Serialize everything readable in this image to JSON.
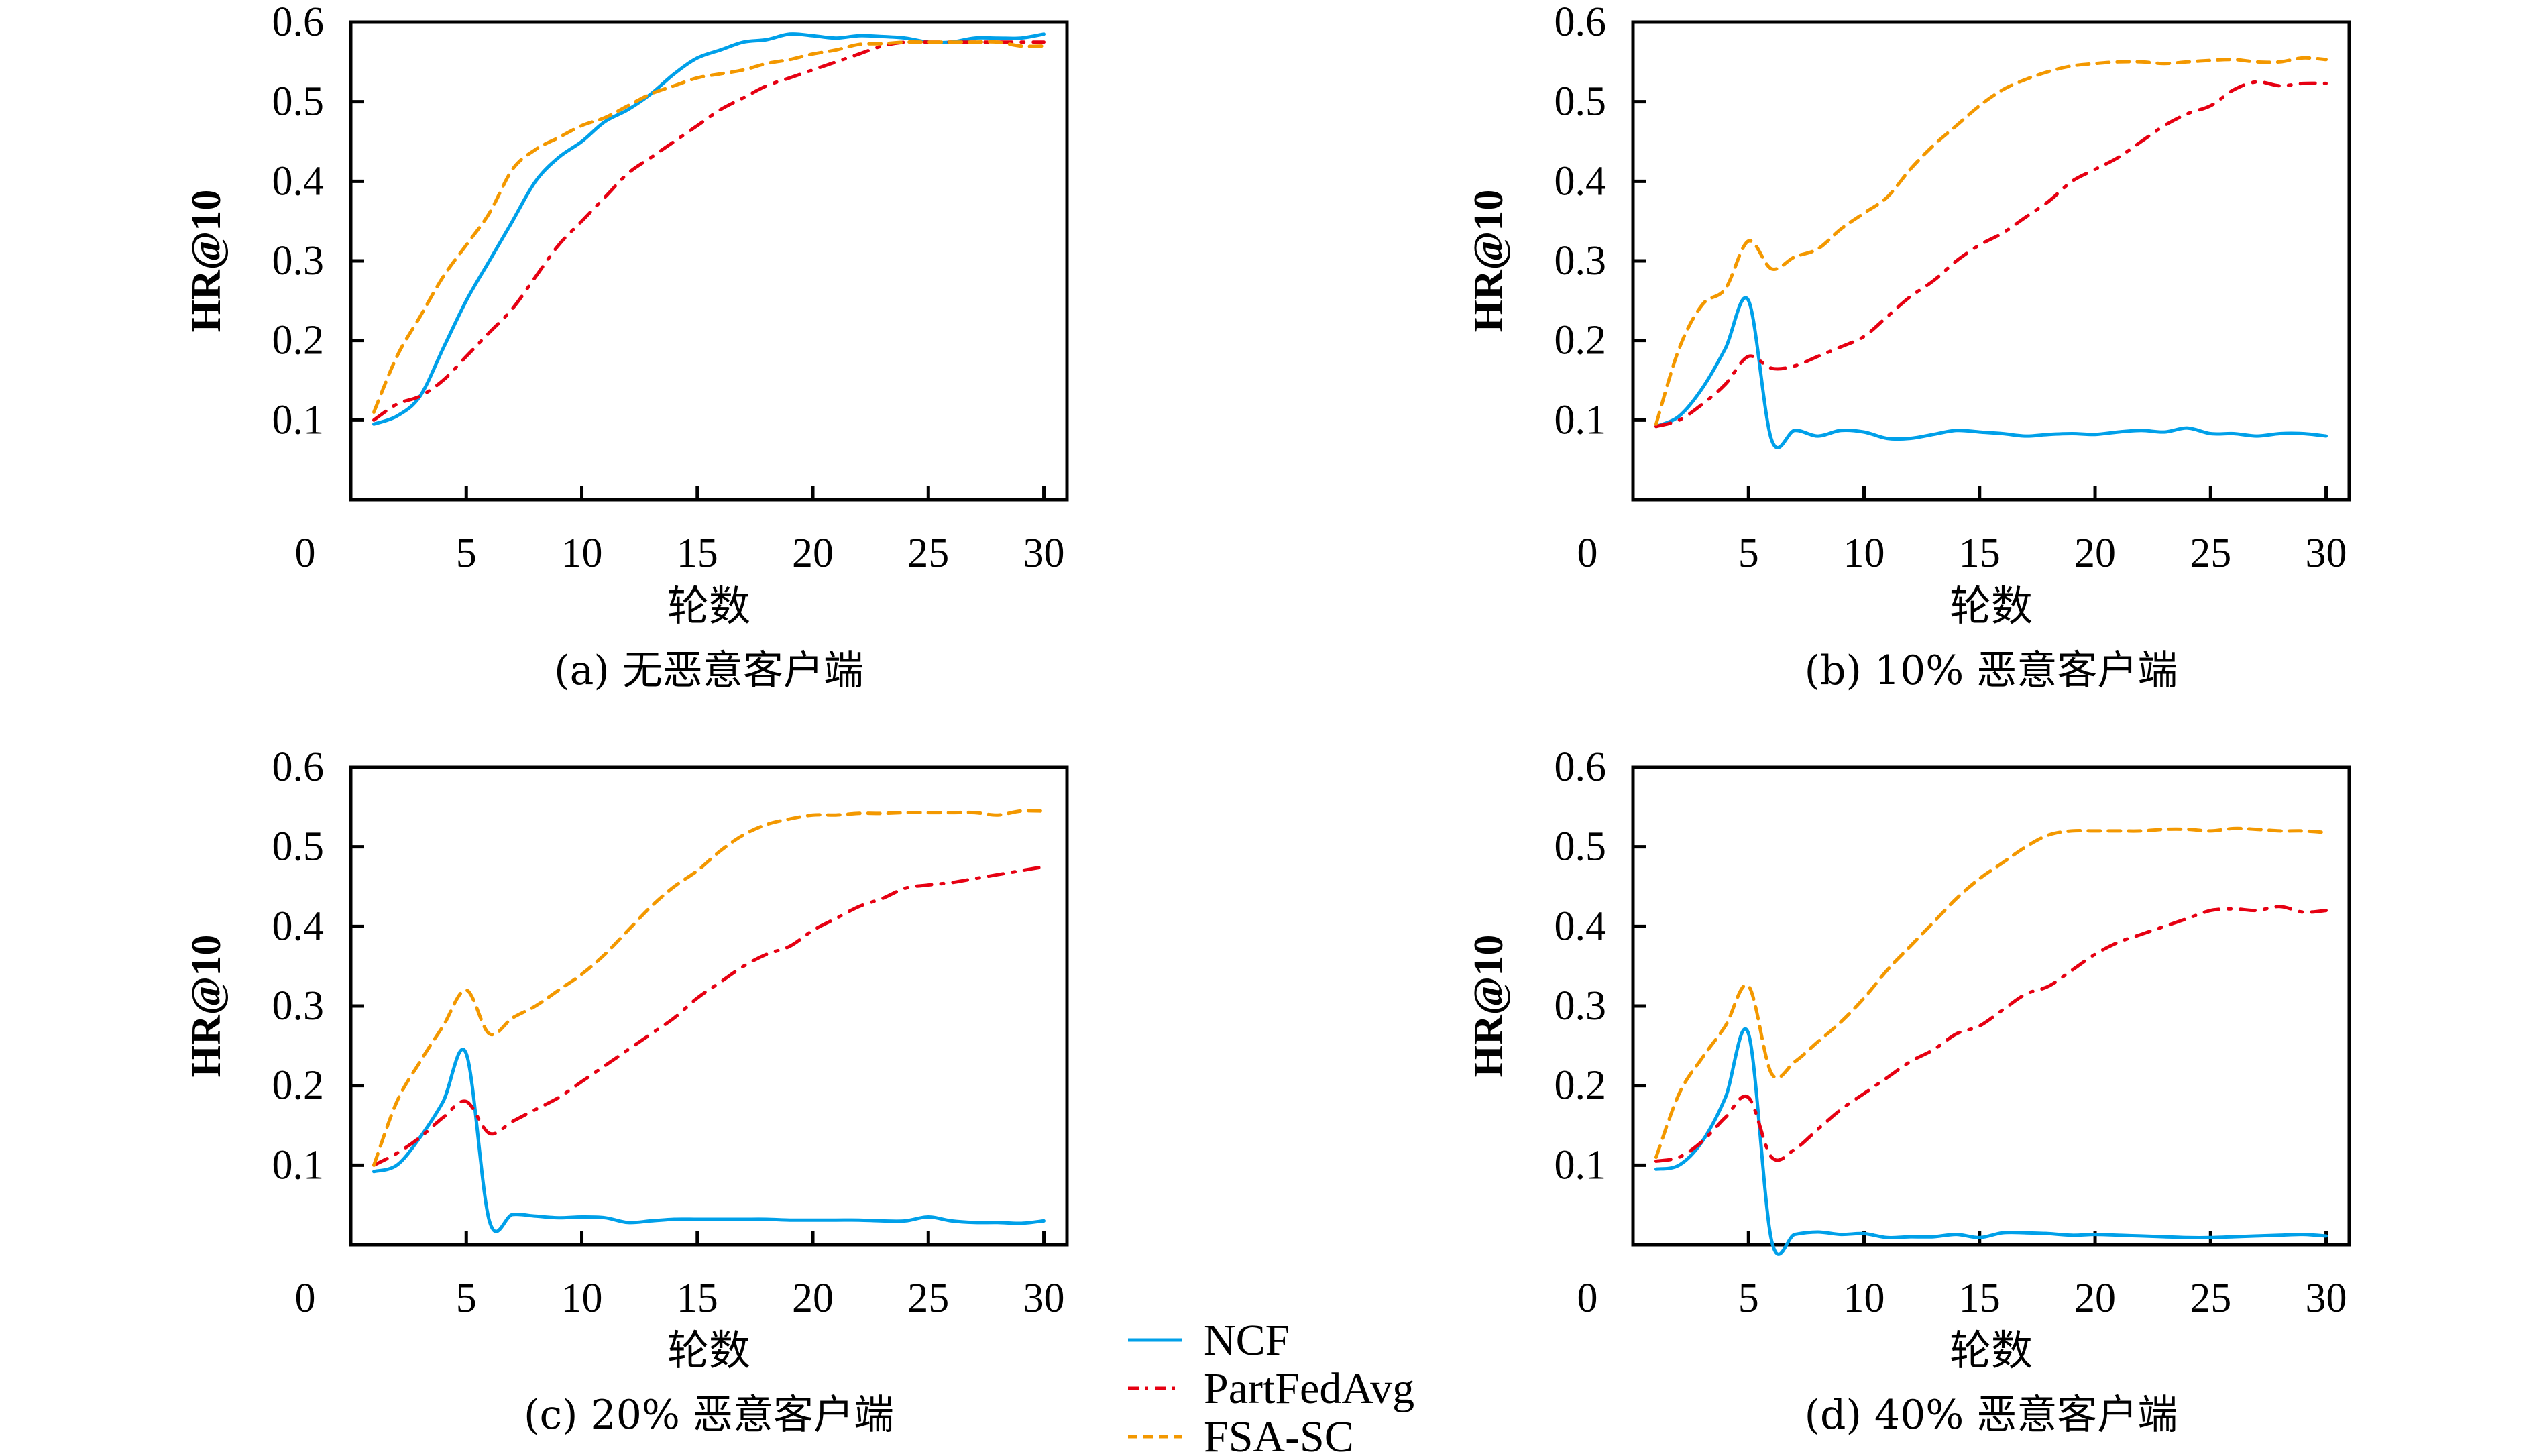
{
  "figure": {
    "legend": [
      {
        "name": "NCF",
        "color": "#00A0E9",
        "dash": "solid"
      },
      {
        "name": "PartFedAvg",
        "color": "#E60012",
        "dash": "dashdot"
      },
      {
        "name": "FSA-SC",
        "color": "#F39800",
        "dash": "dashed"
      }
    ]
  },
  "chart_data": [
    {
      "type": "line",
      "caption": "(a) 无恶意客户端",
      "xlabel": "轮数",
      "ylabel": "HR@10",
      "xlim": [
        0,
        31
      ],
      "ylim": [
        0,
        0.6
      ],
      "xticks": [
        0,
        5,
        10,
        15,
        20,
        25,
        30
      ],
      "yticks": [
        0.1,
        0.2,
        0.3,
        0.4,
        0.5,
        0.6
      ],
      "grid": false,
      "x": [
        1,
        2,
        3,
        4,
        5,
        6,
        7,
        8,
        9,
        10,
        11,
        12,
        13,
        14,
        15,
        16,
        17,
        18,
        19,
        20,
        21,
        22,
        23,
        24,
        25,
        26,
        27,
        28,
        29,
        30
      ],
      "series": [
        {
          "name": "NCF",
          "values": [
            0.095,
            0.105,
            0.13,
            0.19,
            0.25,
            0.3,
            0.35,
            0.4,
            0.43,
            0.45,
            0.475,
            0.49,
            0.51,
            0.535,
            0.555,
            0.565,
            0.575,
            0.578,
            0.585,
            0.583,
            0.58,
            0.583,
            0.582,
            0.58,
            0.575,
            0.575,
            0.58,
            0.58,
            0.58,
            0.585
          ]
        },
        {
          "name": "PartFedAvg",
          "values": [
            0.1,
            0.12,
            0.13,
            0.15,
            0.18,
            0.21,
            0.24,
            0.28,
            0.32,
            0.35,
            0.38,
            0.41,
            0.43,
            0.45,
            0.47,
            0.49,
            0.505,
            0.52,
            0.53,
            0.54,
            0.55,
            0.56,
            0.57,
            0.575,
            0.575,
            0.575,
            0.575,
            0.575,
            0.575,
            0.575
          ]
        },
        {
          "name": "FSA-SC",
          "values": [
            0.11,
            0.18,
            0.23,
            0.28,
            0.32,
            0.36,
            0.415,
            0.44,
            0.455,
            0.47,
            0.48,
            0.495,
            0.51,
            0.52,
            0.53,
            0.535,
            0.54,
            0.548,
            0.553,
            0.56,
            0.565,
            0.572,
            0.573,
            0.575,
            0.575,
            0.575,
            0.575,
            0.575,
            0.57,
            0.57
          ]
        }
      ]
    },
    {
      "type": "line",
      "caption": "(b) 10% 恶意客户端",
      "xlabel": "轮数",
      "ylabel": "HR@10",
      "xlim": [
        0,
        31
      ],
      "ylim": [
        0,
        0.6
      ],
      "xticks": [
        0,
        5,
        10,
        15,
        20,
        25,
        30
      ],
      "yticks": [
        0.1,
        0.2,
        0.3,
        0.4,
        0.5,
        0.6
      ],
      "grid": false,
      "x": [
        1,
        2,
        3,
        4,
        5,
        6,
        7,
        8,
        9,
        10,
        11,
        12,
        13,
        14,
        15,
        16,
        17,
        18,
        19,
        20,
        21,
        22,
        23,
        24,
        25,
        26,
        27,
        28,
        29,
        30
      ],
      "series": [
        {
          "name": "NCF",
          "values": [
            0.092,
            0.105,
            0.14,
            0.19,
            0.25,
            0.075,
            0.087,
            0.08,
            0.087,
            0.085,
            0.077,
            0.077,
            0.082,
            0.087,
            0.085,
            0.083,
            0.08,
            0.082,
            0.083,
            0.082,
            0.085,
            0.087,
            0.085,
            0.09,
            0.083,
            0.083,
            0.08,
            0.083,
            0.083,
            0.08
          ]
        },
        {
          "name": "PartFedAvg",
          "values": [
            0.092,
            0.1,
            0.12,
            0.145,
            0.18,
            0.165,
            0.168,
            0.18,
            0.192,
            0.205,
            0.23,
            0.255,
            0.275,
            0.3,
            0.32,
            0.335,
            0.355,
            0.375,
            0.4,
            0.415,
            0.43,
            0.45,
            0.47,
            0.485,
            0.495,
            0.515,
            0.525,
            0.52,
            0.523,
            0.523
          ]
        },
        {
          "name": "FSA-SC",
          "values": [
            0.095,
            0.19,
            0.245,
            0.265,
            0.325,
            0.29,
            0.305,
            0.315,
            0.34,
            0.36,
            0.38,
            0.415,
            0.445,
            0.47,
            0.495,
            0.515,
            0.528,
            0.538,
            0.545,
            0.548,
            0.55,
            0.55,
            0.548,
            0.55,
            0.552,
            0.553,
            0.55,
            0.55,
            0.555,
            0.553
          ]
        }
      ]
    },
    {
      "type": "line",
      "caption": "(c) 20% 恶意客户端",
      "xlabel": "轮数",
      "ylabel": "HR@10",
      "xlim": [
        0,
        31
      ],
      "ylim": [
        0,
        0.6
      ],
      "xticks": [
        0,
        5,
        10,
        15,
        20,
        25,
        30
      ],
      "yticks": [
        0.1,
        0.2,
        0.3,
        0.4,
        0.5,
        0.6
      ],
      "grid": false,
      "x": [
        1,
        2,
        3,
        4,
        5,
        6,
        7,
        8,
        9,
        10,
        11,
        12,
        13,
        14,
        15,
        16,
        17,
        18,
        19,
        20,
        21,
        22,
        23,
        24,
        25,
        26,
        27,
        28,
        29,
        30
      ],
      "series": [
        {
          "name": "NCF",
          "values": [
            0.092,
            0.1,
            0.135,
            0.18,
            0.24,
            0.03,
            0.038,
            0.036,
            0.034,
            0.035,
            0.034,
            0.028,
            0.03,
            0.032,
            0.032,
            0.032,
            0.032,
            0.032,
            0.031,
            0.031,
            0.031,
            0.031,
            0.03,
            0.03,
            0.035,
            0.03,
            0.028,
            0.028,
            0.027,
            0.03
          ]
        },
        {
          "name": "PartFedAvg",
          "values": [
            0.1,
            0.115,
            0.135,
            0.16,
            0.18,
            0.14,
            0.155,
            0.17,
            0.185,
            0.205,
            0.225,
            0.245,
            0.265,
            0.285,
            0.31,
            0.33,
            0.35,
            0.365,
            0.375,
            0.395,
            0.41,
            0.425,
            0.435,
            0.448,
            0.452,
            0.455,
            0.46,
            0.465,
            0.47,
            0.475
          ]
        },
        {
          "name": "FSA-SC",
          "values": [
            0.1,
            0.18,
            0.23,
            0.275,
            0.32,
            0.265,
            0.285,
            0.3,
            0.32,
            0.34,
            0.365,
            0.395,
            0.425,
            0.45,
            0.47,
            0.495,
            0.515,
            0.528,
            0.535,
            0.54,
            0.54,
            0.542,
            0.542,
            0.543,
            0.543,
            0.543,
            0.543,
            0.54,
            0.545,
            0.545
          ]
        }
      ]
    },
    {
      "type": "line",
      "caption": "(d) 40% 恶意客户端",
      "xlabel": "轮数",
      "ylabel": "HR@10",
      "xlim": [
        0,
        31
      ],
      "ylim": [
        0,
        0.6
      ],
      "xticks": [
        0,
        5,
        10,
        15,
        20,
        25,
        30
      ],
      "yticks": [
        0.1,
        0.2,
        0.3,
        0.4,
        0.5,
        0.6
      ],
      "grid": false,
      "x": [
        1,
        2,
        3,
        4,
        5,
        6,
        7,
        8,
        9,
        10,
        11,
        12,
        13,
        14,
        15,
        16,
        17,
        18,
        19,
        20,
        21,
        22,
        23,
        24,
        25,
        26,
        27,
        28,
        29,
        30
      ],
      "series": [
        {
          "name": "NCF",
          "values": [
            0.095,
            0.1,
            0.13,
            0.185,
            0.265,
            0.005,
            0.013,
            0.016,
            0.013,
            0.014,
            0.009,
            0.01,
            0.01,
            0.013,
            0.009,
            0.015,
            0.015,
            0.014,
            0.012,
            0.013,
            0.012,
            0.011,
            0.01,
            0.009,
            0.009,
            0.01,
            0.011,
            0.012,
            0.013,
            0.011
          ]
        },
        {
          "name": "PartFedAvg",
          "values": [
            0.105,
            0.11,
            0.13,
            0.16,
            0.185,
            0.11,
            0.12,
            0.145,
            0.17,
            0.19,
            0.21,
            0.23,
            0.245,
            0.265,
            0.275,
            0.295,
            0.315,
            0.325,
            0.345,
            0.365,
            0.38,
            0.39,
            0.4,
            0.41,
            0.42,
            0.422,
            0.42,
            0.425,
            0.418,
            0.42
          ]
        },
        {
          "name": "FSA-SC",
          "values": [
            0.11,
            0.19,
            0.235,
            0.275,
            0.325,
            0.215,
            0.23,
            0.255,
            0.28,
            0.31,
            0.345,
            0.375,
            0.405,
            0.435,
            0.46,
            0.48,
            0.5,
            0.515,
            0.52,
            0.52,
            0.52,
            0.52,
            0.522,
            0.522,
            0.52,
            0.523,
            0.522,
            0.52,
            0.52,
            0.518
          ]
        }
      ]
    }
  ]
}
